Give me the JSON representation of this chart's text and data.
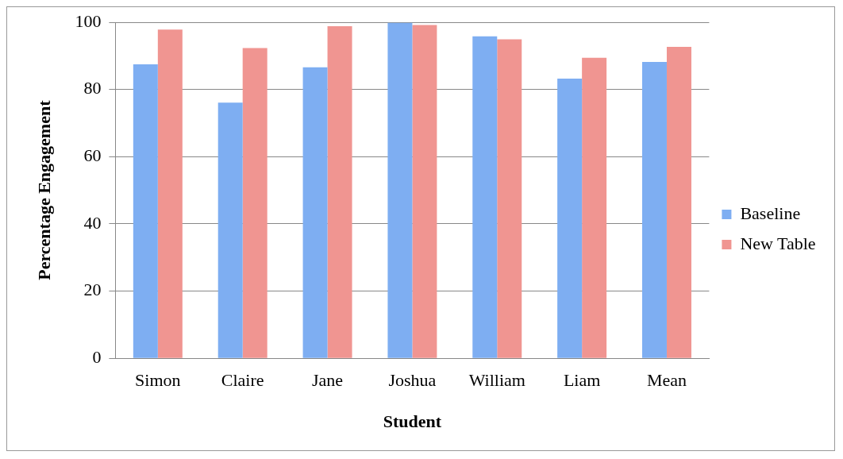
{
  "chart_data": {
    "type": "bar",
    "xlabel": "Student",
    "ylabel": "Percentage Engagement",
    "categories": [
      "Simon",
      "Claire",
      "Jane",
      "Joshua",
      "William",
      "Liam",
      "Mean"
    ],
    "series": [
      {
        "name": "Baseline",
        "color": "#7eaef2",
        "values": [
          87.5,
          76.1,
          86.6,
          99.8,
          95.8,
          83.2,
          88.2
        ]
      },
      {
        "name": "New Table",
        "color": "#f09591",
        "values": [
          97.8,
          92.3,
          98.8,
          99.2,
          94.9,
          89.4,
          92.7
        ]
      }
    ],
    "ylim": [
      0,
      100
    ],
    "yticks": [
      0,
      20,
      40,
      60,
      80,
      100
    ],
    "grid": "y",
    "legend": "right"
  }
}
